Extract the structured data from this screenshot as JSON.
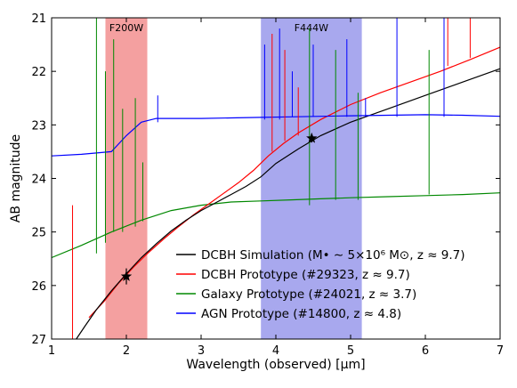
{
  "chart_data": {
    "type": "line",
    "xlabel": "Wavelength (observed) [μm]",
    "ylabel": "AB magnitude",
    "xlim": [
      1,
      7
    ],
    "ylim": [
      27,
      21
    ],
    "y_inverted": true,
    "x_ticks": [
      "1",
      "2",
      "3",
      "4",
      "5",
      "6",
      "7"
    ],
    "y_ticks": [
      "21",
      "22",
      "23",
      "24",
      "25",
      "26",
      "27"
    ],
    "bands": [
      {
        "label": "F200W",
        "range": [
          1.72,
          2.28
        ],
        "color": "#f4a0a0"
      },
      {
        "label": "F444W",
        "range": [
          3.8,
          5.15
        ],
        "color": "#a8a8ee"
      }
    ],
    "series": [
      {
        "name": "DCBH Simulation (M• ∼ 5×10⁶ M⊙, z ≈ 9.7)",
        "color": "#000000",
        "x": [
          1.33,
          1.45,
          1.6,
          1.8,
          2.0,
          2.2,
          2.4,
          2.6,
          2.8,
          3.0,
          3.2,
          3.4,
          3.6,
          3.8,
          4.0,
          4.3,
          4.6,
          5.0,
          5.5,
          6.0,
          6.5,
          7.0
        ],
        "y": [
          27.0,
          26.75,
          26.45,
          26.1,
          25.78,
          25.48,
          25.22,
          24.98,
          24.78,
          24.6,
          24.45,
          24.3,
          24.15,
          23.97,
          23.72,
          23.45,
          23.2,
          22.95,
          22.7,
          22.45,
          22.2,
          21.95
        ]
      },
      {
        "name": "DCBH Prototype (#29323, z ≈ 9.7)",
        "color": "#ff0000",
        "x": [
          1.5,
          1.7,
          1.9,
          2.1,
          2.3,
          2.5,
          2.7,
          2.9,
          3.1,
          3.3,
          3.5,
          3.7,
          3.9,
          4.1,
          4.3,
          4.6,
          5.0,
          5.4,
          5.8,
          6.2,
          6.6,
          7.0
        ],
        "y": [
          26.6,
          26.3,
          25.95,
          25.65,
          25.38,
          25.13,
          24.9,
          24.68,
          24.48,
          24.28,
          24.08,
          23.85,
          23.58,
          23.35,
          23.15,
          22.9,
          22.62,
          22.4,
          22.2,
          22.0,
          21.78,
          21.55
        ]
      },
      {
        "name": "Galaxy Prototype (#24021, z ≈ 3.7)",
        "color": "#008800",
        "x": [
          1.0,
          1.4,
          1.8,
          2.2,
          2.6,
          3.0,
          3.4,
          3.8,
          4.2,
          4.6,
          5.0,
          5.5,
          6.0,
          6.5,
          7.0
        ],
        "y": [
          25.48,
          25.25,
          25.0,
          24.78,
          24.6,
          24.5,
          24.44,
          24.42,
          24.4,
          24.38,
          24.36,
          24.34,
          24.32,
          24.3,
          24.27
        ]
      },
      {
        "name": "AGN Prototype (#14800, z ≈ 4.8)",
        "color": "#0000ff",
        "x": [
          1.0,
          1.4,
          1.8,
          2.0,
          2.2,
          2.4,
          2.6,
          3.0,
          3.4,
          3.8,
          4.2,
          4.6,
          5.0,
          5.5,
          6.0,
          6.5,
          7.0
        ],
        "y": [
          23.58,
          23.55,
          23.5,
          23.2,
          22.95,
          22.88,
          22.88,
          22.88,
          22.87,
          22.86,
          22.85,
          22.84,
          22.83,
          22.82,
          22.81,
          22.82,
          22.84
        ]
      }
    ],
    "spikes": [
      {
        "color": "#008800",
        "lines": [
          [
            1.6,
            25.4,
            21.0
          ],
          [
            1.72,
            25.2,
            22.0
          ],
          [
            1.83,
            25.0,
            21.4
          ],
          [
            1.95,
            25.0,
            22.7
          ],
          [
            2.12,
            24.9,
            22.5
          ],
          [
            2.22,
            24.8,
            23.7
          ],
          [
            4.45,
            24.5,
            21.2
          ],
          [
            4.8,
            24.4,
            21.6
          ],
          [
            6.05,
            24.3,
            21.6
          ],
          [
            5.1,
            24.4,
            22.4
          ]
        ]
      },
      {
        "color": "#ff0000",
        "lines": [
          [
            1.28,
            27.0,
            24.5
          ],
          [
            3.95,
            23.5,
            21.3
          ],
          [
            4.12,
            23.3,
            21.6
          ],
          [
            4.3,
            23.2,
            22.3
          ],
          [
            6.3,
            21.9,
            21.0
          ],
          [
            6.6,
            21.75,
            21.0
          ]
        ]
      },
      {
        "color": "#0000ff",
        "lines": [
          [
            3.85,
            22.9,
            21.5
          ],
          [
            4.05,
            22.9,
            21.2
          ],
          [
            4.22,
            22.85,
            22.0
          ],
          [
            4.5,
            22.85,
            21.5
          ],
          [
            4.95,
            22.85,
            21.4
          ],
          [
            5.2,
            22.85,
            22.5
          ],
          [
            5.62,
            22.85,
            21.0
          ],
          [
            6.25,
            22.85,
            21.0
          ],
          [
            2.42,
            22.95,
            22.45
          ]
        ]
      }
    ],
    "markers": [
      {
        "x": 2.0,
        "y": 25.83,
        "err": 0.15,
        "symbol": "star"
      },
      {
        "x": 4.48,
        "y": 23.25,
        "err": 0.08,
        "symbol": "star"
      }
    ],
    "legend": {
      "placement": "lower-right",
      "entries": [
        {
          "color": "#000000",
          "text": "DCBH Simulation (M• ∼ 5×10⁶ M⊙, z ≈ 9.7)"
        },
        {
          "color": "#ff0000",
          "text": "DCBH Prototype (#29323, z ≈ 9.7)"
        },
        {
          "color": "#008800",
          "text": "Galaxy Prototype (#24021, z ≈ 3.7)"
        },
        {
          "color": "#0000ff",
          "text": "AGN Prototype (#14800, z ≈ 4.8)"
        }
      ]
    }
  }
}
